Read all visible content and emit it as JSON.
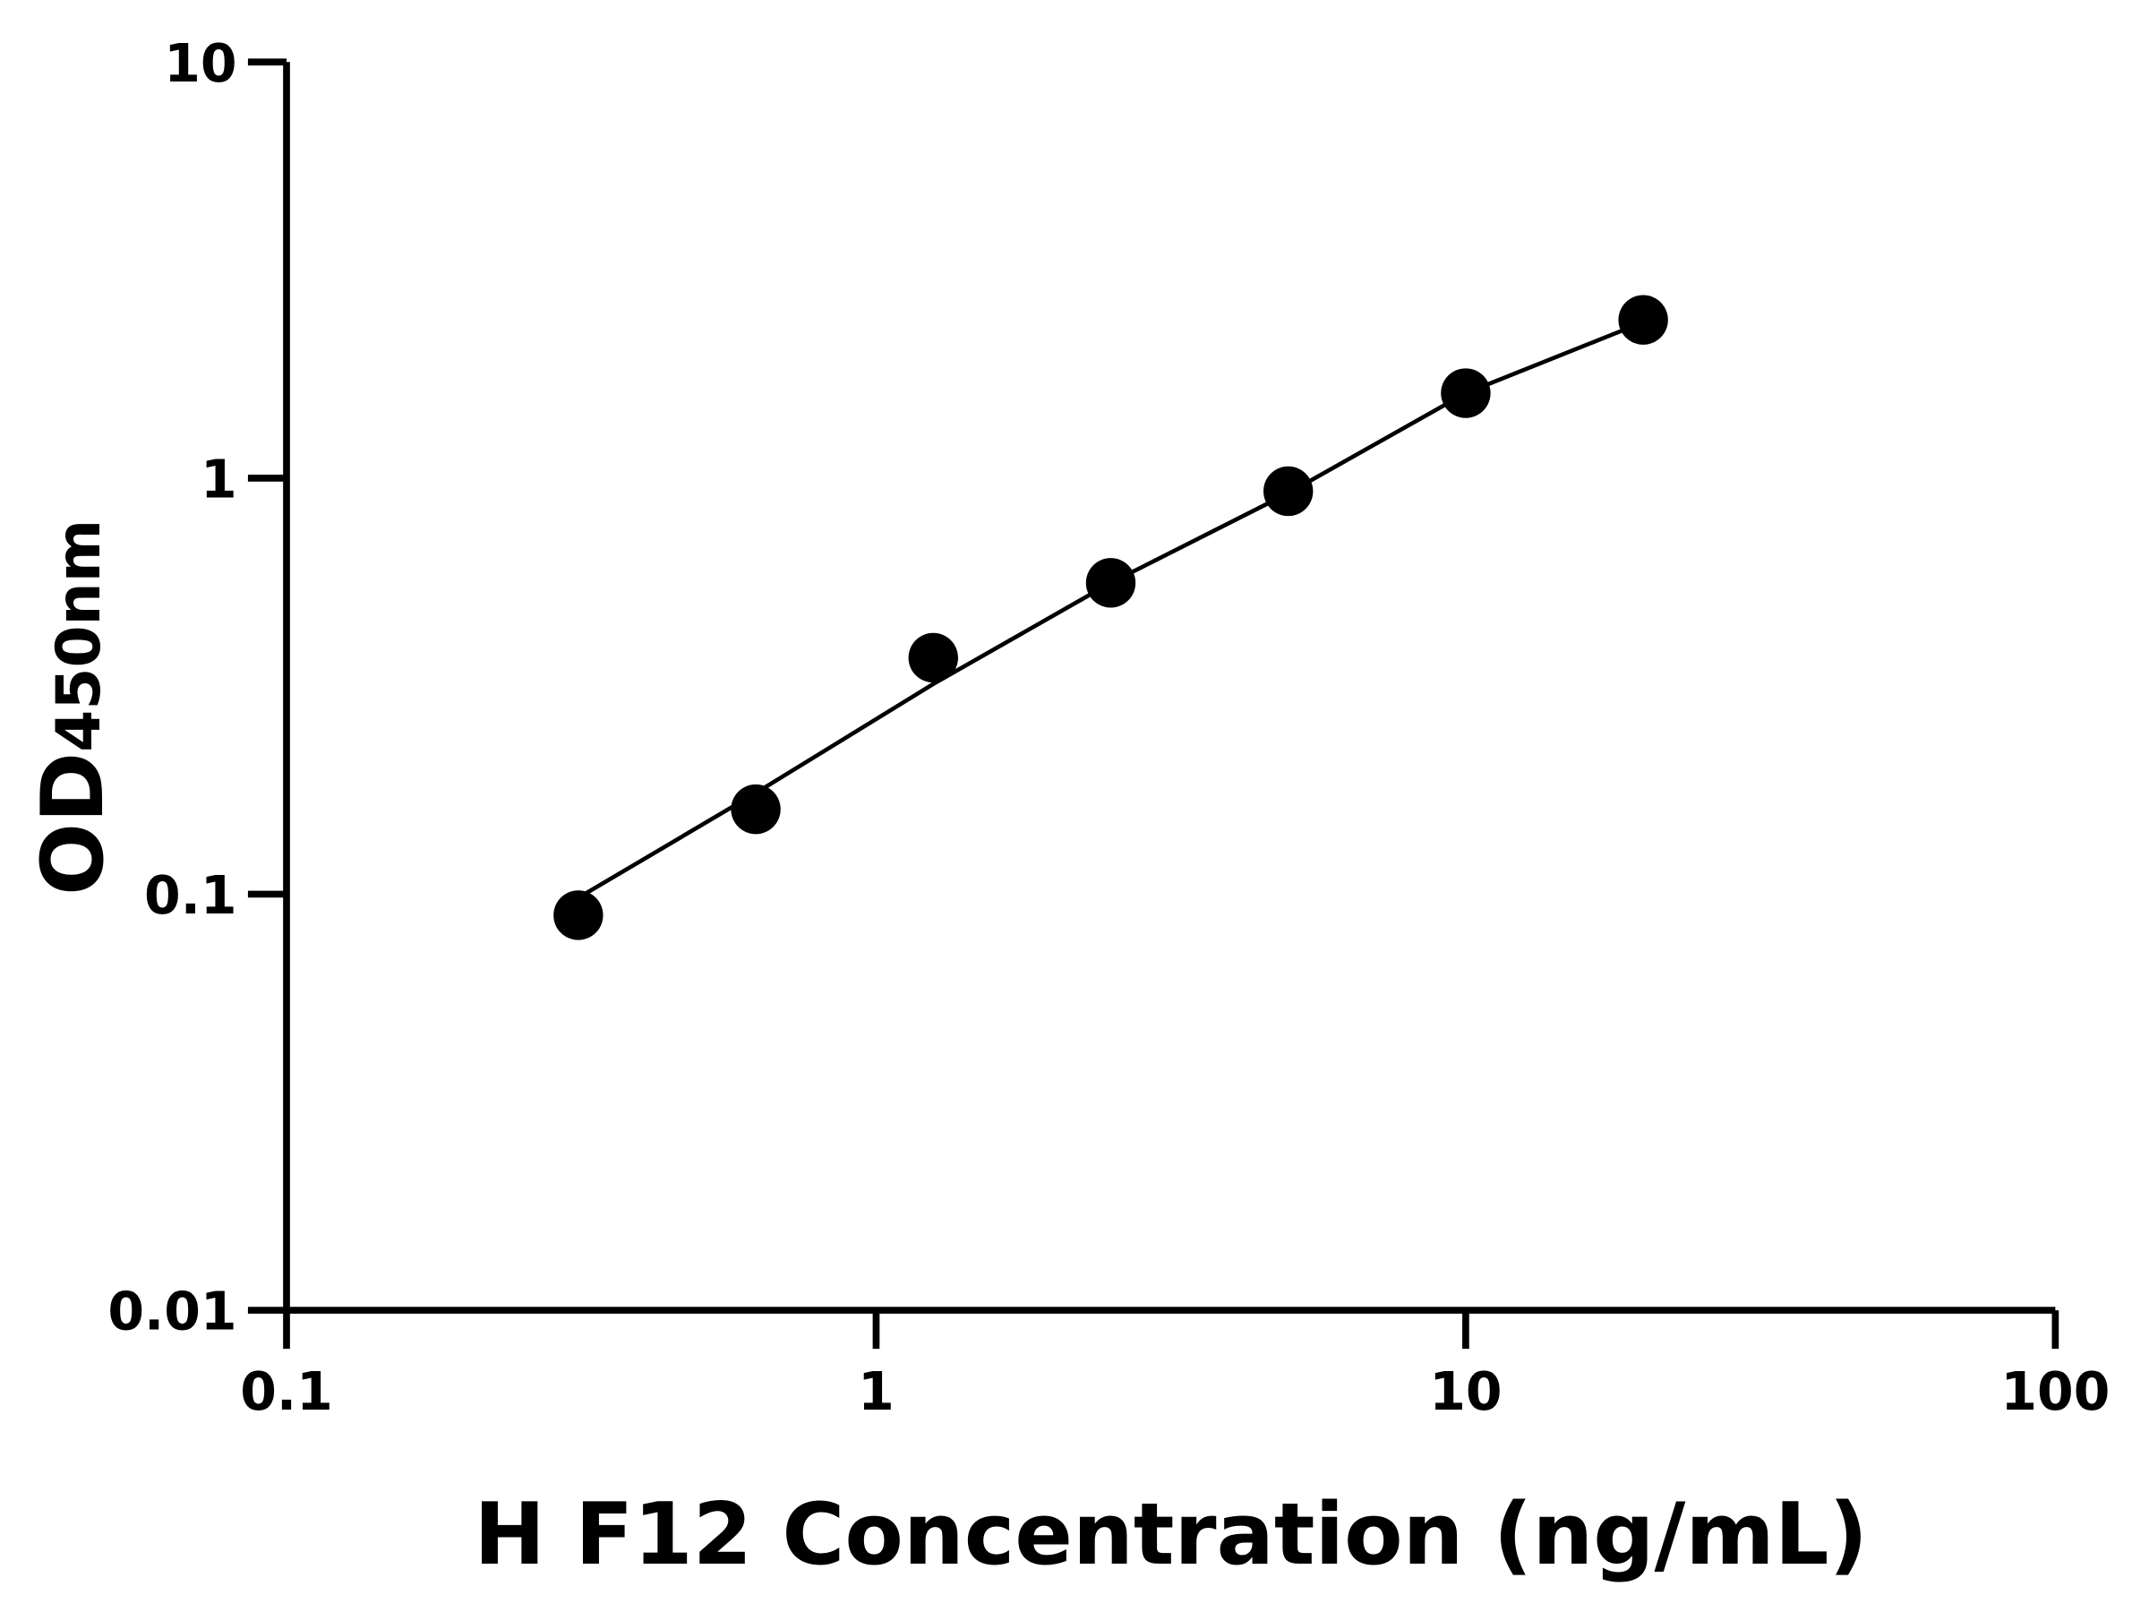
{
  "chart_data": {
    "type": "scatter",
    "xlabel": "H F12 Concentration (ng/mL)",
    "ylabel": "OD",
    "ylabel_subscript": "450nm",
    "x": [
      0.3125,
      0.625,
      1.25,
      2.5,
      5,
      10,
      20
    ],
    "series": [
      {
        "color": "#000000",
        "values": [
          0.089,
          0.16,
          0.37,
          0.56,
          0.93,
          1.6,
          2.4
        ]
      }
    ],
    "fit_curve": {
      "color": "#000000",
      "values": [
        0.098,
        0.175,
        0.32,
        0.56,
        0.92,
        1.6,
        2.37
      ]
    },
    "xscale": "log",
    "yscale": "log",
    "xlim": [
      0.1,
      100
    ],
    "ylim": [
      0.01,
      10
    ],
    "xticks": [
      0.1,
      1,
      10,
      100
    ],
    "yticks": [
      0.01,
      0.1,
      1,
      10
    ]
  }
}
